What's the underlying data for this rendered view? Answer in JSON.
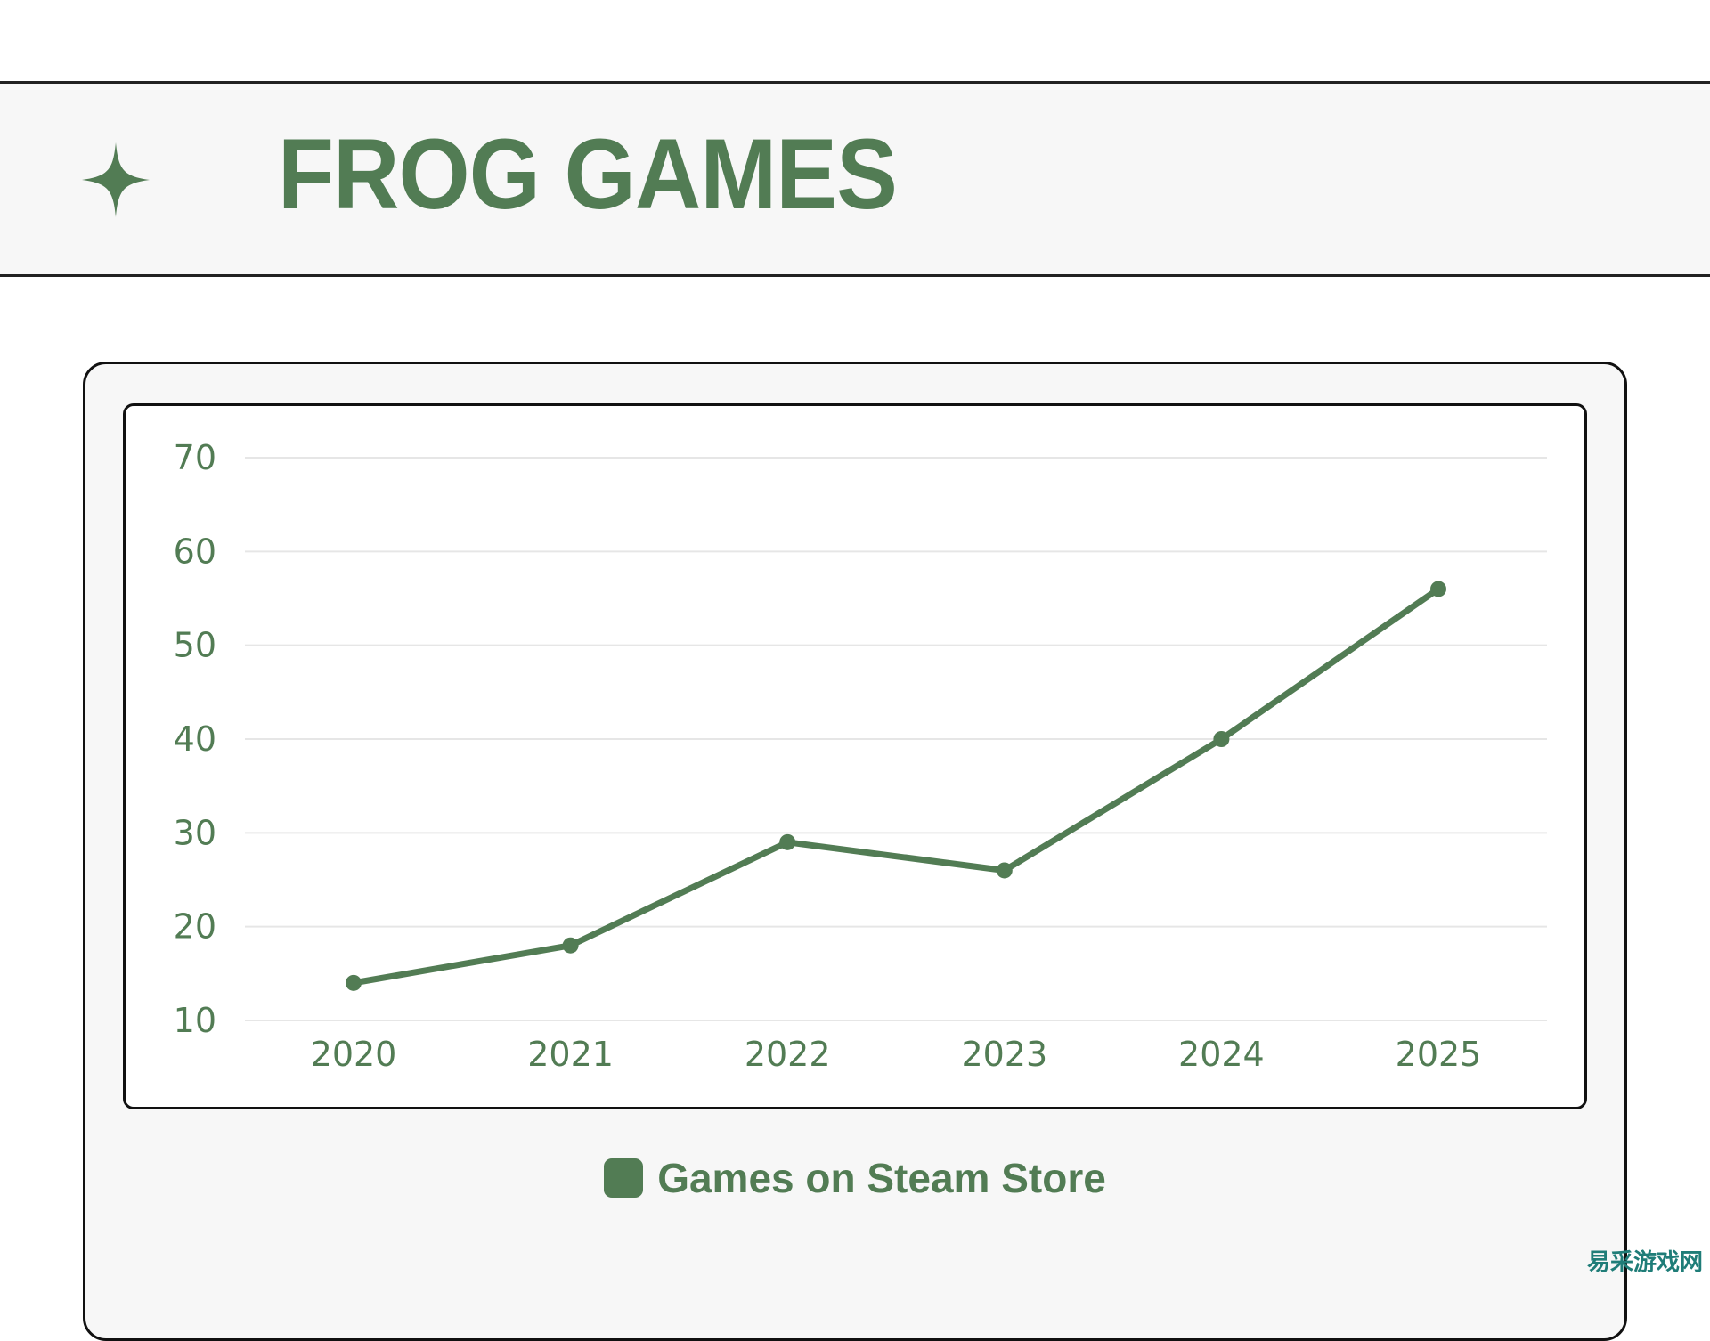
{
  "header": {
    "title": "FROG GAMES",
    "icon": "sparkle-icon"
  },
  "colors": {
    "accent": "#527c54",
    "grid": "#e6e6e6",
    "panel": "#f7f7f7"
  },
  "chart_data": {
    "type": "line",
    "categories": [
      "2020",
      "2021",
      "2022",
      "2023",
      "2024",
      "2025"
    ],
    "series": [
      {
        "name": "Games on Steam Store",
        "values": [
          14,
          18,
          29,
          26,
          40,
          56
        ]
      }
    ],
    "yticks": [
      10,
      20,
      30,
      40,
      50,
      60,
      70
    ],
    "ylim": [
      10,
      70
    ],
    "grid": true,
    "legend": "bottom"
  },
  "watermark": "易采游戏网"
}
